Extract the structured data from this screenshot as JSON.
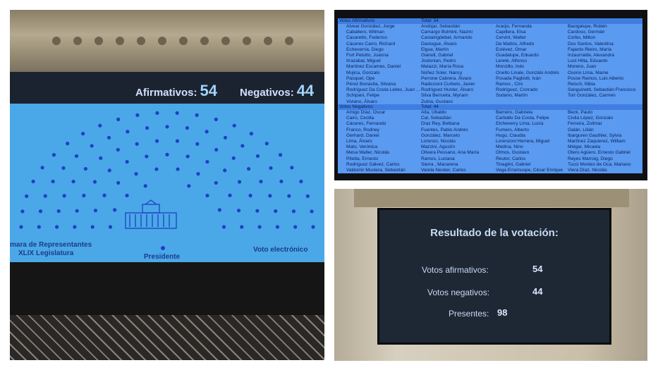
{
  "left_screen": {
    "afirmativos_label": "Afirmativos:",
    "afirmativos": "54",
    "negativos_label": "Negativos:",
    "negativos": "44",
    "chamber": "mara de Representantes",
    "legislature": "XLIX Legislatura",
    "president": "Presidente",
    "mode": "Voto electrónico",
    "seat_color": "#1f3fc4",
    "screen_color": "#4aa8e8"
  },
  "list": {
    "afirmativos_header": "Votos Afirmativos",
    "afirmativos_total": "Total:  54",
    "afirmativos": [
      [
        "Alvear González, Jorge",
        "Caballero, Wilman",
        "Casaretto,  Federico",
        "Cáceres Carro, Richard",
        "Echeverría, Diego",
        "Fort Petutto, Joanna",
        "Irrazabal, Miguel",
        "Martínez Escames, Daniel",
        "Mujica, Gonzalo",
        "Pasquet, Ope",
        "Pérez Bonavita, Silvana",
        "Rodríguez Da Costa Leites, Juan ...",
        "Schipani, Felipe",
        "Viviano, Álvaro"
      ],
      [
        "Andújar, Sebastián",
        "Camargo Bulmini, Nazmi",
        "Castaingdebat, Armando",
        "Dastugue, Álvaro",
        "Elgue, Martín",
        "Gianoli, Gabriel",
        "Jisdonian, Pedro",
        "Melazzi, María Rosa",
        "Núñez Soler, Nancy",
        "Perrone Cabrera, Álvaro",
        "Radiccioni Curbelo, Javier",
        "Rodríguez Hunter, Álvaro",
        "Silva Berrueta, Myriam",
        "Zubía, Gustavo"
      ],
      [
        "Araújo, Fernanda",
        "Capillera, Elsa",
        "Cervini, Walter",
        "De Mattos, Alfredo",
        "Estévez, Omar",
        "Guadalupe, Eduardo",
        "Lereté, Alfonso",
        "Monzillo, Inés",
        "Onetto Linale, Gonzálo Andrés",
        "Posada Pagliotti, Iván",
        "Ramos , Ciro",
        "Rodríguez, Conrado",
        "Sodano, Martín"
      ],
      [
        "Bacigalupe, Rubén",
        "Cardoso, Germán",
        "Corbo, Milton",
        "Dos Santos, Valentina",
        "Fajardo Rieiro, María",
        "Inzaurralde, Alexandra",
        "Lust Hitta, Eduardo",
        "Moreno, Juan",
        "Osorio Lima, Mame",
        "Posse Ramos, Luis Alberto",
        "Reisch, Nibia",
        "Sanguinetti, Sebastián Francisco",
        "Tort González, Carmen"
      ]
    ],
    "negativos_header": "Votos Negativos",
    "negativos_total": "Total: 44",
    "negativos": [
      [
        "Amigo Díaz, Oscar",
        "Cairo, Cecilia",
        "Cáceres, Fernando",
        "Franco, Rodney",
        "Gerhard, Daniel",
        "Lima, Álvaro",
        "Mato, Verónica",
        "Mesa Waller, Nicolás",
        "Pitetta, Ernesto",
        "Rodríguez Gálvez, Carlos",
        "Valdomir Muslera, Sebastián"
      ],
      [
        "Aita, Ubaldo",
        "Cal, Sebastián",
        "Díaz Rey, Bettiana",
        "Fuentes, Pablo Andrés",
        "González, Marcelo",
        "Lorenzo, Nicolás",
        "Mazzini, Agustín",
        "Olivera Pessano, Ana María",
        "Ramos, Luciana",
        "Sierra , Macarena",
        "Varela Nestier, Carlos"
      ],
      [
        "Barreiro, Gabriela",
        "Carballo Da Costa, Felipe",
        "Etcheverry Lima, Lucía",
        "Fumero, Alberto",
        "Hugo, Claudia",
        "Lorenzoni Herrera, Miguel",
        "Medina, Nino",
        "Olmos, Gustavo",
        "Reutor, Carlos",
        "Tinaglini, Gabriel",
        "Vega Erramuspe, César Enrique"
      ],
      [
        "Beck, Paulo",
        "Civila López, Gonzalo",
        "Ferreira, Zulimar",
        "Galán, Lilián",
        "Ibarguren Gauthier, Sylvia",
        "Martínez Zaquierez, William",
        "Melgar, Micaela",
        "Otero Agüero, Ernesto Gabriel",
        "Reyes Marroig, Diego",
        "Tucci Montes de Oca, Mariano",
        "Viera Díaz, Nicolás"
      ]
    ]
  },
  "result_screen": {
    "title": "Resultado de la votación:",
    "afirmativos_label": "Votos afirmativos:",
    "afirmativos": "54",
    "negativos_label": "Votos negativos:",
    "negativos": "44",
    "presentes_label": "Presentes:",
    "presentes": "98"
  }
}
